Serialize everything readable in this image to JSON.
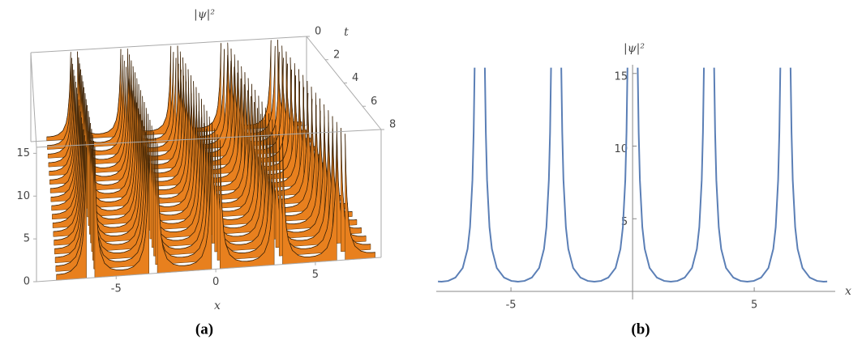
{
  "chart_data": [
    {
      "type": "surface",
      "caption": "(a)",
      "xlabel": "x",
      "ylabel": "t",
      "zlabel": "|ψ|²",
      "xlim": [
        -9,
        8.3
      ],
      "ylim": [
        0,
        8
      ],
      "zlim": [
        0,
        15.7
      ],
      "xticks": [
        -5,
        0,
        5
      ],
      "yticks": [
        0,
        2,
        4,
        6,
        8
      ],
      "zticks": [
        0,
        5,
        10,
        15
      ],
      "color": "#e8801e"
    },
    {
      "type": "line",
      "caption": "(b)",
      "xlabel": "x",
      "ylabel": "|ψ|²",
      "color": "#5b7fb6",
      "xlim": [
        -8.07,
        8.33
      ],
      "ylim": [
        0,
        15.6
      ],
      "xticks": [
        -5,
        5
      ],
      "yticks": [
        5,
        10,
        15
      ],
      "x": [
        -8,
        -7.854,
        -7.583,
        -7.283,
        -6.983,
        -6.783,
        -6.683,
        -6.583,
        -6.533,
        -6.493,
        -6.283,
        -6.073,
        -6.033,
        -5.983,
        -5.883,
        -5.783,
        -5.583,
        -5.283,
        -4.983,
        -4.712,
        -4.442,
        -4.142,
        -3.842,
        -3.642,
        -3.542,
        -3.442,
        -3.392,
        -3.352,
        -3.142,
        -2.932,
        -2.892,
        -2.842,
        -2.742,
        -2.642,
        -2.442,
        -2.142,
        -1.842,
        -1.571,
        -1.3,
        -1,
        -0.7,
        -0.5,
        -0.4,
        -0.3,
        -0.25,
        -0.21,
        0,
        0.21,
        0.25,
        0.3,
        0.4,
        0.5,
        0.7,
        1,
        1.3,
        1.571,
        1.842,
        2.142,
        2.442,
        2.642,
        2.742,
        2.842,
        2.892,
        2.932,
        3.142,
        3.352,
        3.392,
        3.442,
        3.542,
        3.642,
        3.842,
        4.142,
        4.442,
        4.712,
        4.983,
        5.283,
        5.583,
        5.783,
        5.883,
        5.983,
        6.033,
        6.073,
        6.283,
        6.493,
        6.533,
        6.583,
        6.683,
        6.783,
        6.983,
        7.283,
        7.583,
        7.854,
        8
      ],
      "values": [
        0.68,
        0.67,
        0.72,
        0.95,
        1.61,
        2.92,
        4.42,
        7.67,
        10.95,
        15.4,
        null,
        15.4,
        10.95,
        7.67,
        4.42,
        2.92,
        1.61,
        0.95,
        0.72,
        0.67,
        0.72,
        0.95,
        1.61,
        2.92,
        4.42,
        7.67,
        10.95,
        15.4,
        null,
        15.4,
        10.95,
        7.67,
        4.42,
        2.92,
        1.61,
        0.95,
        0.72,
        0.67,
        0.72,
        0.95,
        1.61,
        2.92,
        4.42,
        7.67,
        10.95,
        15.4,
        null,
        15.4,
        10.95,
        7.67,
        4.42,
        2.92,
        1.61,
        0.95,
        0.72,
        0.67,
        0.72,
        0.95,
        1.61,
        2.92,
        4.42,
        7.67,
        10.95,
        15.4,
        null,
        15.4,
        10.95,
        7.67,
        4.42,
        2.92,
        1.61,
        0.95,
        0.72,
        0.67,
        0.72,
        0.95,
        1.61,
        2.92,
        4.42,
        7.67,
        10.95,
        15.4,
        null,
        15.4,
        10.95,
        7.67,
        4.42,
        2.92,
        1.61,
        0.95,
        0.72,
        0.67,
        0.68
      ]
    }
  ]
}
